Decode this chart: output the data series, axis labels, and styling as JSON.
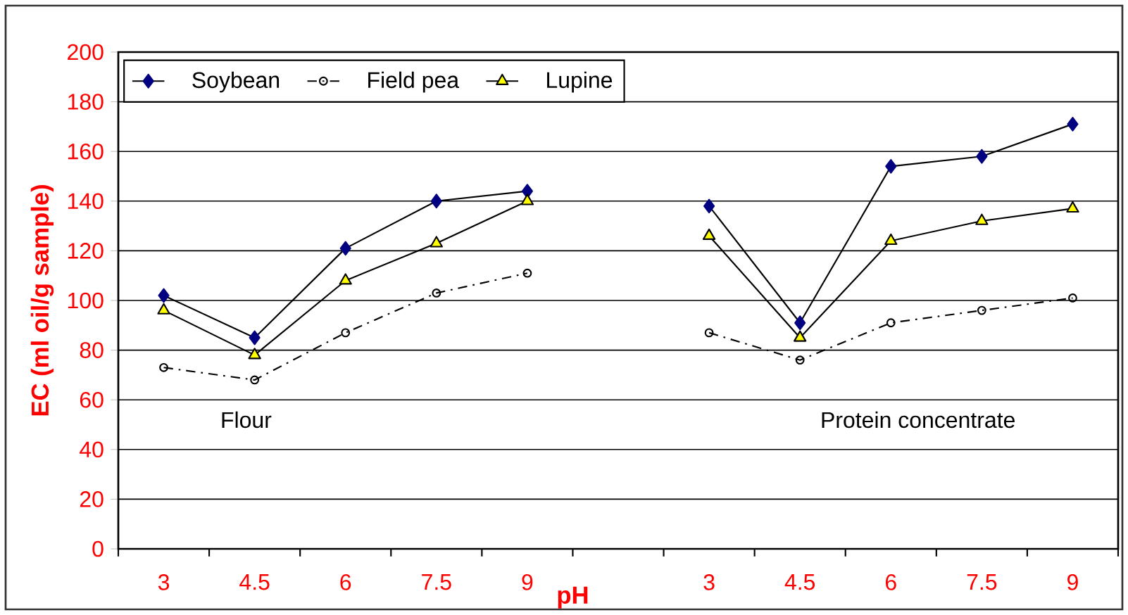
{
  "chart_data": {
    "type": "line",
    "xlabel": "pH",
    "ylabel": "EC (ml oil/g sample)",
    "categories": [
      "3",
      "4.5",
      "6",
      "7.5",
      "9",
      null,
      "3",
      "4.5",
      "6",
      "7.5",
      "9"
    ],
    "series": [
      {
        "name": "Soybean",
        "color": "#000080",
        "marker": "diamond",
        "line_style": "solid",
        "values": [
          102,
          85,
          121,
          140,
          144,
          null,
          138,
          91,
          154,
          158,
          171
        ]
      },
      {
        "name": "Field pea",
        "color": "#000000",
        "marker": "circle",
        "line_style": "dashed",
        "values": [
          73,
          68,
          87,
          103,
          111,
          null,
          87,
          76,
          91,
          96,
          101
        ]
      },
      {
        "name": "Lupine",
        "color": "#ffff00",
        "marker": "triangle",
        "line_style": "solid",
        "values": [
          96,
          78,
          108,
          123,
          140,
          null,
          126,
          85,
          124,
          132,
          137
        ]
      }
    ],
    "ylim": [
      0,
      200
    ],
    "yticks": [
      0,
      20,
      40,
      60,
      80,
      100,
      120,
      140,
      160,
      180,
      200
    ],
    "grid": "y",
    "legend": "top left",
    "annotations": [
      "Flour",
      "Protein concentrate"
    ]
  }
}
